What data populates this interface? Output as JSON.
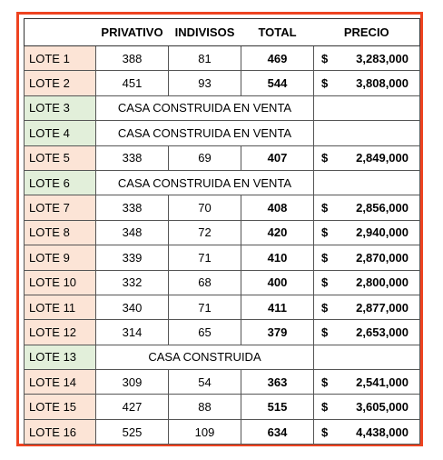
{
  "table": {
    "header": [
      "PRIVATIVO",
      "INDIVISOS",
      "TOTAL",
      "PRECIO"
    ],
    "rows": [
      {
        "lote": "LOTE 1",
        "privativo": 388,
        "indivisos": 81,
        "total": 469,
        "currency": "$",
        "precio": "3,283,000"
      },
      {
        "lote": "LOTE 2",
        "privativo": 451,
        "indivisos": 93,
        "total": 544,
        "currency": "$",
        "precio": "3,808,000"
      },
      {
        "lote": "LOTE 3",
        "status": "CASA CONSTRUIDA EN VENTA"
      },
      {
        "lote": "LOTE 4",
        "status": "CASA CONSTRUIDA EN VENTA"
      },
      {
        "lote": "LOTE 5",
        "privativo": 338,
        "indivisos": 69,
        "total": 407,
        "currency": "$",
        "precio": "2,849,000"
      },
      {
        "lote": "LOTE 6",
        "status": "CASA CONSTRUIDA EN VENTA"
      },
      {
        "lote": "LOTE 7",
        "privativo": 338,
        "indivisos": 70,
        "total": 408,
        "currency": "$",
        "precio": "2,856,000"
      },
      {
        "lote": "LOTE 8",
        "privativo": 348,
        "indivisos": 72,
        "total": 420,
        "currency": "$",
        "precio": "2,940,000"
      },
      {
        "lote": "LOTE 9",
        "privativo": 339,
        "indivisos": 71,
        "total": 410,
        "currency": "$",
        "precio": "2,870,000"
      },
      {
        "lote": "LOTE 10",
        "privativo": 332,
        "indivisos": 68,
        "total": 400,
        "currency": "$",
        "precio": "2,800,000"
      },
      {
        "lote": "LOTE 11",
        "privativo": 340,
        "indivisos": 71,
        "total": 411,
        "currency": "$",
        "precio": "2,877,000"
      },
      {
        "lote": "LOTE 12",
        "privativo": 314,
        "indivisos": 65,
        "total": 379,
        "currency": "$",
        "precio": "2,653,000"
      },
      {
        "lote": "LOTE 13",
        "status": "CASA CONSTRUIDA"
      },
      {
        "lote": "LOTE 14",
        "privativo": 309,
        "indivisos": 54,
        "total": 363,
        "currency": "$",
        "precio": "2,541,000"
      },
      {
        "lote": "LOTE 15",
        "privativo": 427,
        "indivisos": 88,
        "total": 515,
        "currency": "$",
        "precio": "3,605,000"
      },
      {
        "lote": "LOTE 16",
        "privativo": 525,
        "indivisos": 109,
        "total": 634,
        "currency": "$",
        "precio": "4,438,000"
      }
    ]
  }
}
